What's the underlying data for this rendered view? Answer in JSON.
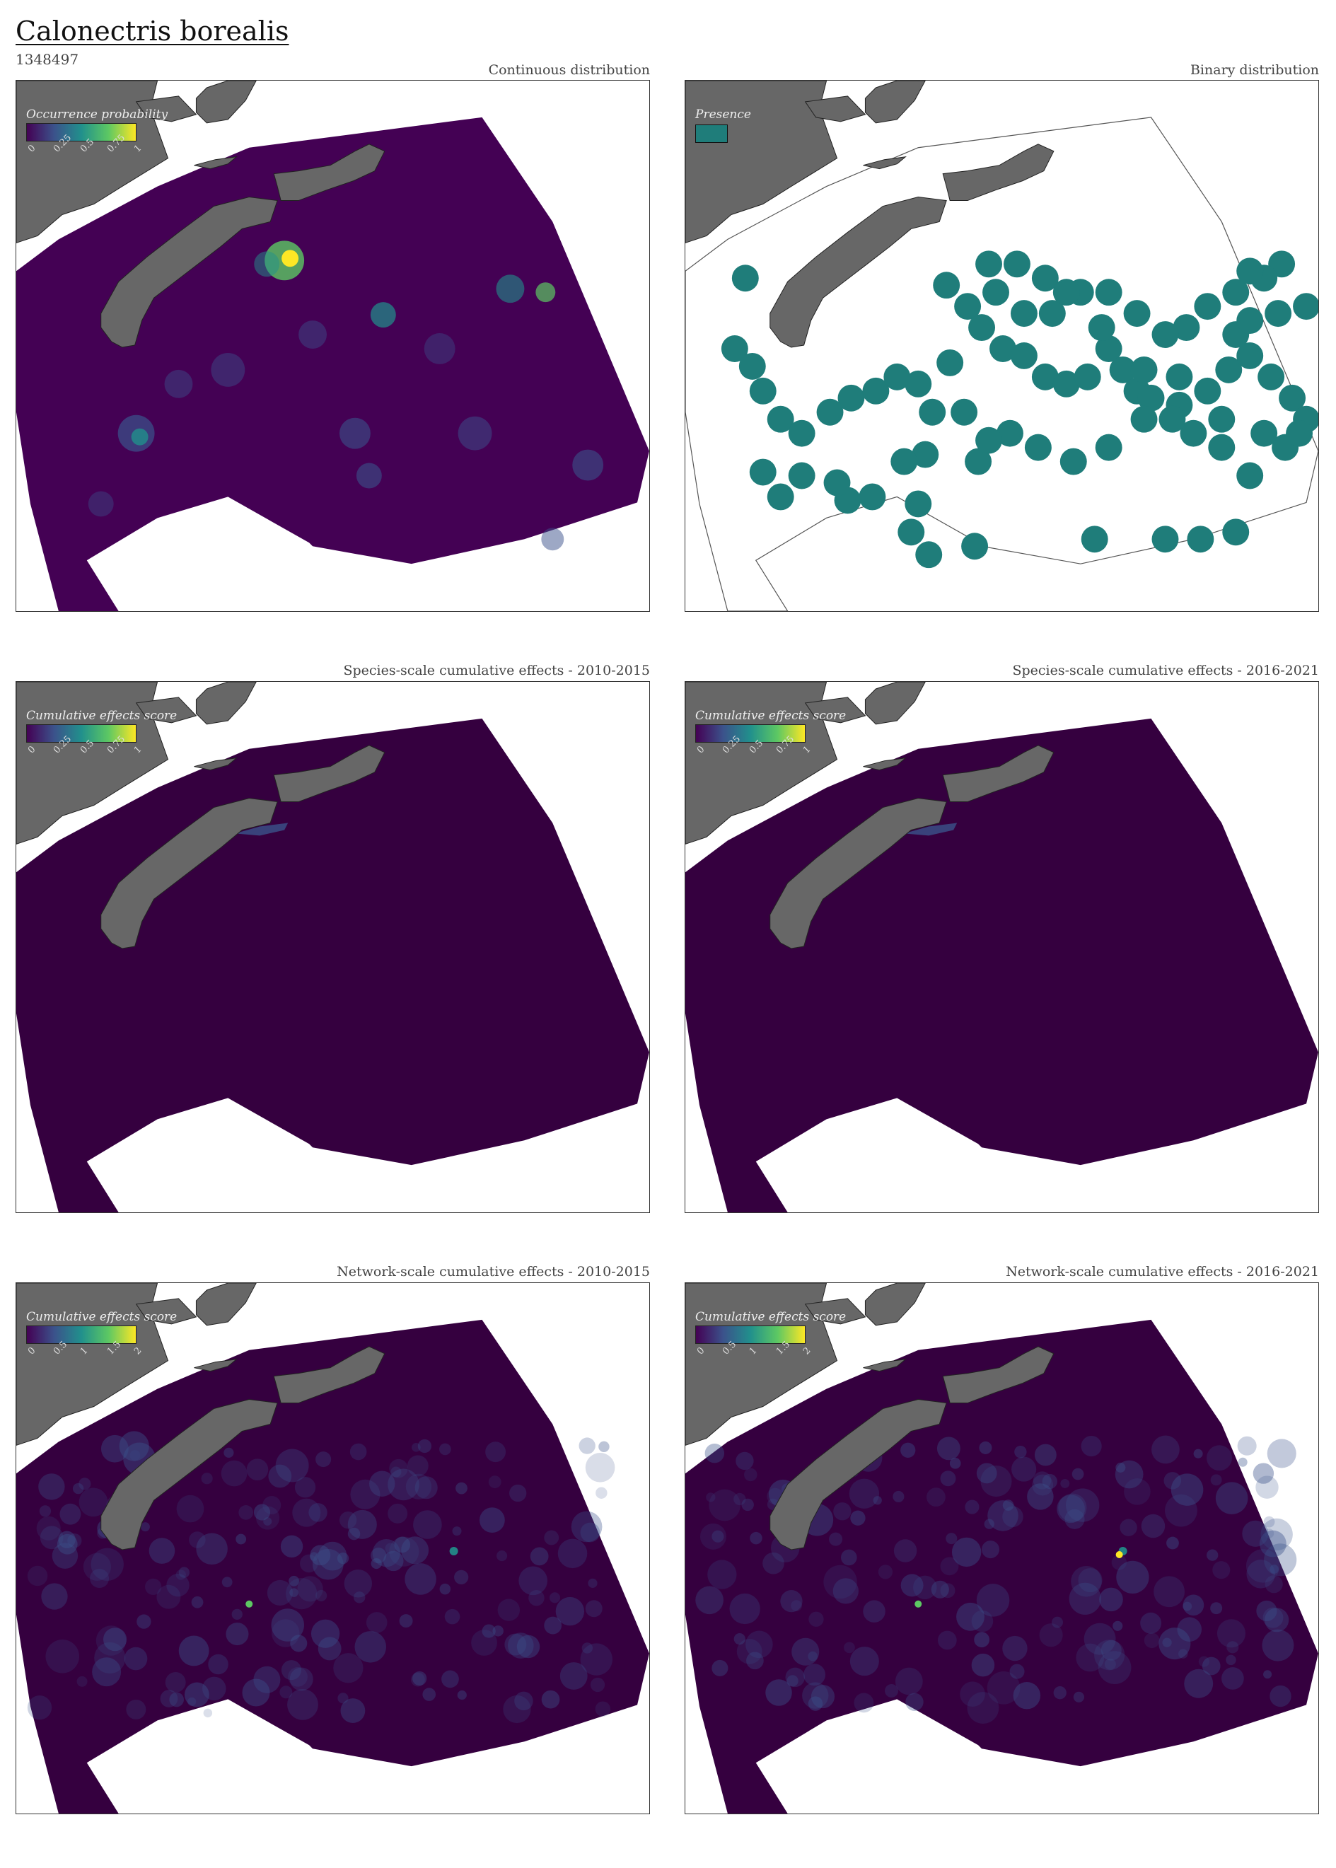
{
  "title": "Calonectris borealis",
  "subtitle": "1348497",
  "colors": {
    "ocean_dark": "#2d0040",
    "land": "#676767",
    "presence": "#1f7d7a",
    "viridis": [
      "#440154",
      "#3b528b",
      "#21908c",
      "#5dc863",
      "#fde725"
    ]
  },
  "panels": [
    {
      "title": "Continuous distribution",
      "legend_title": "Occurrence probability",
      "ticks": [
        "0",
        "0.25",
        "0.5",
        "0.75",
        "1"
      ],
      "type": "continuous"
    },
    {
      "title": "Binary distribution",
      "legend_title": "Presence",
      "ticks": [],
      "type": "binary"
    },
    {
      "title": "Species-scale cumulative effects - 2010-2015",
      "legend_title": "Cumulative effects score",
      "ticks": [
        "0",
        "0.25",
        "0.5",
        "0.75",
        "1"
      ],
      "type": "species"
    },
    {
      "title": "Species-scale cumulative effects - 2016-2021",
      "legend_title": "Cumulative effects score",
      "ticks": [
        "0",
        "0.25",
        "0.5",
        "0.75",
        "1"
      ],
      "type": "species"
    },
    {
      "title": "Network-scale cumulative effects - 2010-2015",
      "legend_title": "Cumulative effects score",
      "ticks": [
        "0",
        "0.5",
        "1",
        "1.5",
        "2"
      ],
      "type": "network"
    },
    {
      "title": "Network-scale cumulative effects - 2016-2021",
      "legend_title": "Cumulative effects score",
      "ticks": [
        "0",
        "0.5",
        "1",
        "1.5",
        "2"
      ],
      "type": "network"
    }
  ]
}
